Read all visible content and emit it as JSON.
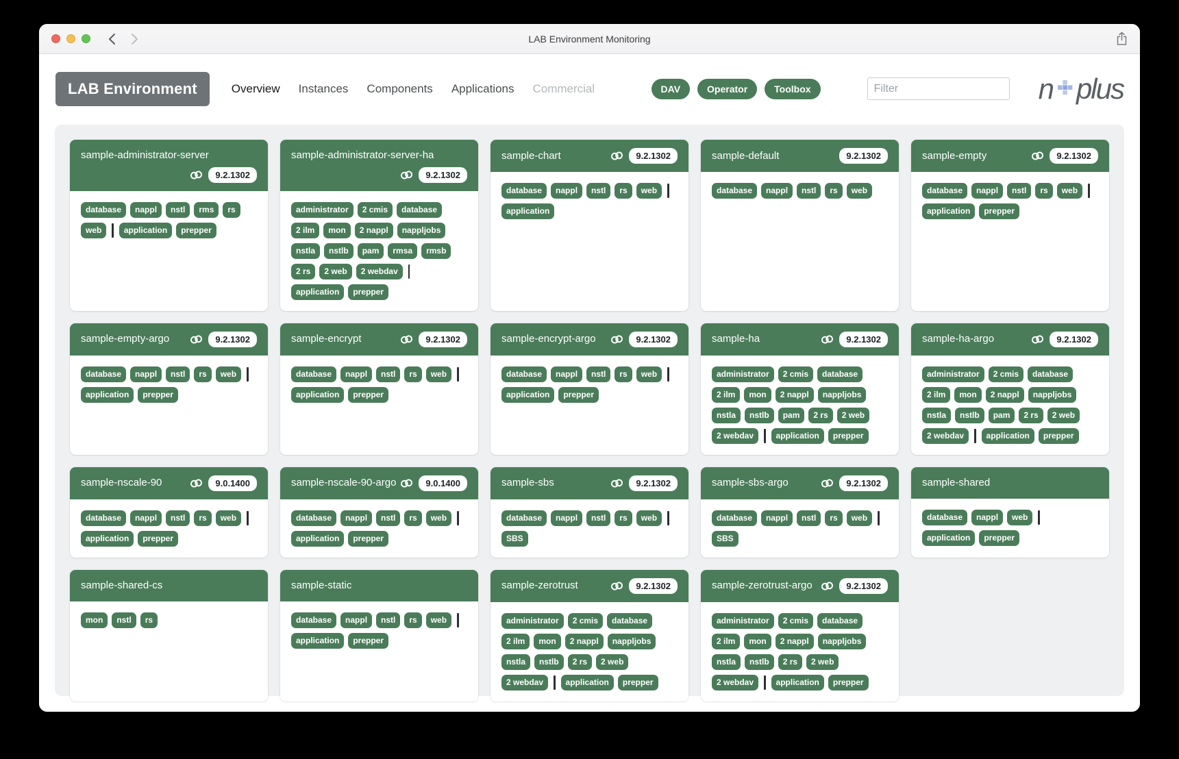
{
  "window": {
    "title": "LAB Environment Monitoring"
  },
  "navbar": {
    "brand": "LAB Environment",
    "items": [
      {
        "label": "Overview",
        "active": true
      },
      {
        "label": "Instances"
      },
      {
        "label": "Components"
      },
      {
        "label": "Applications"
      },
      {
        "label": "Commercial",
        "disabled": true
      }
    ],
    "buttons": [
      "DAV",
      "Operator",
      "Toolbox"
    ],
    "filter_placeholder": "Filter",
    "logo": {
      "prefix": "n",
      "plus": "+",
      "suffix": "plus"
    }
  },
  "colors": {
    "header_green": "#4a7c59",
    "tag_green": "#4a7c59",
    "badge_bg": "#fcfdfd",
    "badge_text": "#212529",
    "brand_gray": "#6e7377",
    "logo_blue": "#a6b7e4",
    "traffic_red": "#ed6a5f",
    "traffic_yellow": "#f5bf4f",
    "traffic_green": "#61c554",
    "board_bg": "#eef0f2"
  },
  "cards": [
    {
      "name": "sample-administrator-server",
      "link": true,
      "version": "9.2.1302",
      "tags": [
        "database",
        "nappl",
        "nstl",
        "rms",
        "rs",
        "web",
        "|",
        "application",
        "prepper"
      ]
    },
    {
      "name": "sample-administrator-server-ha",
      "link": true,
      "version": "9.2.1302",
      "tags": [
        "administrator",
        "2 cmis",
        "database",
        "2 ilm",
        "mon",
        "2 nappl",
        "nappljobs",
        "nstla",
        "nstlb",
        "pam",
        "rmsa",
        "rmsb",
        "2 rs",
        "2 web",
        "2 webdav",
        "|",
        "application",
        "prepper"
      ]
    },
    {
      "name": "sample-chart",
      "link": true,
      "version": "9.2.1302",
      "tags": [
        "database",
        "nappl",
        "nstl",
        "rs",
        "web",
        "|",
        "application"
      ]
    },
    {
      "name": "sample-default",
      "link": false,
      "version": "9.2.1302",
      "tags": [
        "database",
        "nappl",
        "nstl",
        "rs",
        "web"
      ]
    },
    {
      "name": "sample-empty",
      "link": true,
      "version": "9.2.1302",
      "tags": [
        "database",
        "nappl",
        "nstl",
        "rs",
        "web",
        "|",
        "application",
        "prepper"
      ]
    },
    {
      "name": "sample-empty-argo",
      "link": true,
      "version": "9.2.1302",
      "tags": [
        "database",
        "nappl",
        "nstl",
        "rs",
        "web",
        "|",
        "application",
        "prepper"
      ]
    },
    {
      "name": "sample-encrypt",
      "link": true,
      "version": "9.2.1302",
      "tags": [
        "database",
        "nappl",
        "nstl",
        "rs",
        "web",
        "|",
        "application",
        "prepper"
      ]
    },
    {
      "name": "sample-encrypt-argo",
      "link": true,
      "version": "9.2.1302",
      "tags": [
        "database",
        "nappl",
        "nstl",
        "rs",
        "web",
        "|",
        "application",
        "prepper"
      ]
    },
    {
      "name": "sample-ha",
      "link": true,
      "version": "9.2.1302",
      "tags": [
        "administrator",
        "2 cmis",
        "database",
        "2 ilm",
        "mon",
        "2 nappl",
        "nappljobs",
        "nstla",
        "nstlb",
        "pam",
        "2 rs",
        "2 web",
        "2 webdav",
        "|",
        "application",
        "prepper"
      ]
    },
    {
      "name": "sample-ha-argo",
      "link": true,
      "version": "9.2.1302",
      "tags": [
        "administrator",
        "2 cmis",
        "database",
        "2 ilm",
        "mon",
        "2 nappl",
        "nappljobs",
        "nstla",
        "nstlb",
        "pam",
        "2 rs",
        "2 web",
        "2 webdav",
        "|",
        "application",
        "prepper"
      ]
    },
    {
      "name": "sample-nscale-90",
      "link": true,
      "version": "9.0.1400",
      "tags": [
        "database",
        "nappl",
        "nstl",
        "rs",
        "web",
        "|",
        "application",
        "prepper"
      ]
    },
    {
      "name": "sample-nscale-90-argo",
      "link": true,
      "version": "9.0.1400",
      "tags": [
        "database",
        "nappl",
        "nstl",
        "rs",
        "web",
        "|",
        "application",
        "prepper"
      ]
    },
    {
      "name": "sample-sbs",
      "link": true,
      "version": "9.2.1302",
      "tags": [
        "database",
        "nappl",
        "nstl",
        "rs",
        "web",
        "|",
        "SBS"
      ]
    },
    {
      "name": "sample-sbs-argo",
      "link": true,
      "version": "9.2.1302",
      "tags": [
        "database",
        "nappl",
        "nstl",
        "rs",
        "web",
        "|",
        "SBS"
      ]
    },
    {
      "name": "sample-shared",
      "link": false,
      "version": null,
      "tags": [
        "database",
        "nappl",
        "web",
        "|",
        "application",
        "prepper"
      ]
    },
    {
      "name": "sample-shared-cs",
      "link": false,
      "version": null,
      "tags": [
        "mon",
        "nstl",
        "rs"
      ]
    },
    {
      "name": "sample-static",
      "link": false,
      "version": null,
      "tags": [
        "database",
        "nappl",
        "nstl",
        "rs",
        "web",
        "|",
        "application",
        "prepper"
      ]
    },
    {
      "name": "sample-zerotrust",
      "link": true,
      "version": "9.2.1302",
      "tags": [
        "administrator",
        "2 cmis",
        "database",
        "2 ilm",
        "mon",
        "2 nappl",
        "nappljobs",
        "nstla",
        "nstlb",
        "2 rs",
        "2 web",
        "2 webdav",
        "|",
        "application",
        "prepper"
      ]
    },
    {
      "name": "sample-zerotrust-argo",
      "link": true,
      "version": "9.2.1302",
      "tags": [
        "administrator",
        "2 cmis",
        "database",
        "2 ilm",
        "mon",
        "2 nappl",
        "nappljobs",
        "nstla",
        "nstlb",
        "2 rs",
        "2 web",
        "2 webdav",
        "|",
        "application",
        "prepper"
      ]
    }
  ]
}
